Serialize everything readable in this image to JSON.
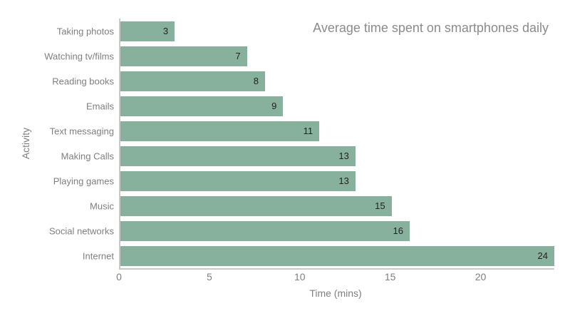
{
  "chart_data": {
    "type": "bar",
    "orientation": "horizontal",
    "title": "Average time spent on smartphones daily",
    "xlabel": "Time (mins)",
    "ylabel": "Activity",
    "categories": [
      "Taking photos",
      "Watching tv/films",
      "Reading books",
      "Emails",
      "Text messaging",
      "Making Calls",
      "Playing games",
      "Music",
      "Social networks",
      "Internet"
    ],
    "values": [
      3,
      7,
      8,
      9,
      11,
      13,
      13,
      15,
      16,
      24
    ],
    "xlim": [
      0,
      24
    ],
    "xticks": [
      0,
      5,
      10,
      15,
      20
    ],
    "grid": false,
    "legend": false,
    "colors": {
      "bar": "#87b19c",
      "title": "#8b8b8b",
      "tick_label": "#7f7f7f",
      "axis_line": "#c9c9c9",
      "value_label": "#222222",
      "background": "#ffffff"
    }
  }
}
